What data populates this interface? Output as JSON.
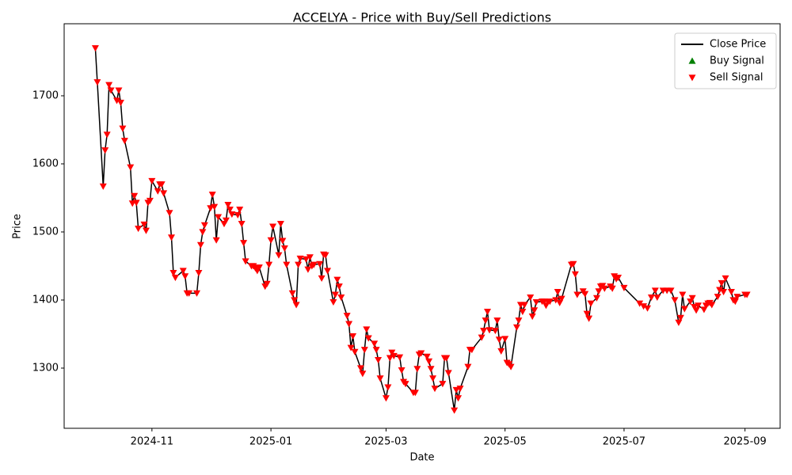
{
  "chart_data": {
    "type": "line",
    "title": "ACCELYA - Price with Buy/Sell Predictions",
    "x_label": "Date",
    "y_label": "Price",
    "xlim": [
      19983,
      20350
    ],
    "ylim": [
      1211.6,
      1805.8
    ],
    "xticks": [
      {
        "value": 20028,
        "label": "2024-11"
      },
      {
        "value": 20089,
        "label": "2025-01"
      },
      {
        "value": 20148,
        "label": "2025-03"
      },
      {
        "value": 20209,
        "label": "2025-05"
      },
      {
        "value": 20270,
        "label": "2025-07"
      },
      {
        "value": 20332,
        "label": "2025-09"
      }
    ],
    "yticks": [
      1300,
      1400,
      1500,
      1600,
      1700
    ],
    "grid": false,
    "legend": "upper right",
    "x": [
      19999,
      20000,
      20003,
      20004,
      20005,
      20006,
      20007,
      20010,
      20011,
      20012,
      20013,
      20014,
      20017,
      20018,
      20019,
      20020,
      20021,
      20024,
      20025,
      20026,
      20027,
      20028,
      20031,
      20032,
      20033,
      20034,
      20037,
      20038,
      20039,
      20040,
      20044,
      20045,
      20046,
      20047,
      20051,
      20052,
      20053,
      20054,
      20055,
      20058,
      20059,
      20060,
      20061,
      20062,
      20065,
      20066,
      20067,
      20068,
      20069,
      20072,
      20073,
      20074,
      20075,
      20076,
      20079,
      20080,
      20081,
      20082,
      20083,
      20086,
      20087,
      20088,
      20089,
      20090,
      20093,
      20094,
      20095,
      20096,
      20097,
      20100,
      20101,
      20102,
      20103,
      20104,
      20107,
      20108,
      20109,
      20110,
      20111,
      20114,
      20115,
      20116,
      20117,
      20118,
      20121,
      20122,
      20123,
      20124,
      20125,
      20128,
      20129,
      20130,
      20131,
      20132,
      20135,
      20136,
      20137,
      20138,
      20139,
      20142,
      20143,
      20144,
      20145,
      20148,
      20149,
      20150,
      20151,
      20152,
      20155,
      20156,
      20157,
      20158,
      20162,
      20163,
      20164,
      20165,
      20166,
      20169,
      20170,
      20171,
      20172,
      20173,
      20177,
      20178,
      20179,
      20180,
      20183,
      20184,
      20185,
      20186,
      20190,
      20191,
      20192,
      20197,
      20198,
      20199,
      20200,
      20201,
      20204,
      20205,
      20206,
      20207,
      20209,
      20210,
      20211,
      20212,
      20215,
      20216,
      20217,
      20218,
      20219,
      20222,
      20223,
      20224,
      20225,
      20228,
      20229,
      20230,
      20231,
      20232,
      20235,
      20236,
      20237,
      20238,
      20243,
      20244,
      20245,
      20246,
      20249,
      20250,
      20251,
      20252,
      20253,
      20256,
      20257,
      20258,
      20259,
      20260,
      20263,
      20264,
      20265,
      20266,
      20267,
      20270,
      20278,
      20280,
      20282,
      20284,
      20286,
      20287,
      20290,
      20292,
      20294,
      20296,
      20298,
      20299,
      20300,
      20301,
      20304,
      20305,
      20306,
      20307,
      20308,
      20311,
      20312,
      20313,
      20314,
      20315,
      20318,
      20319,
      20320,
      20321,
      20322,
      20325,
      20326,
      20327,
      20328,
      20332,
      20333
    ],
    "series": [
      {
        "name": "Close Price",
        "color": "#000000",
        "style": "line",
        "values": [
          1770,
          1720,
          1567,
          1620,
          1643,
          1716,
          1708,
          1693,
          1708,
          1690,
          1652,
          1634,
          1595,
          1542,
          1553,
          1543,
          1505,
          1511,
          1502,
          1543,
          1546,
          1575,
          1560,
          1570,
          1570,
          1557,
          1528,
          1492,
          1440,
          1433,
          1443,
          1435,
          1410,
          1410,
          1410,
          1440,
          1481,
          1500,
          1510,
          1535,
          1555,
          1537,
          1488,
          1522,
          1512,
          1517,
          1540,
          1533,
          1526,
          1525,
          1533,
          1512,
          1484,
          1457,
          1450,
          1450,
          1447,
          1443,
          1448,
          1420,
          1424,
          1452,
          1488,
          1508,
          1466,
          1512,
          1487,
          1476,
          1452,
          1410,
          1400,
          1393,
          1452,
          1461,
          1460,
          1445,
          1463,
          1450,
          1452,
          1453,
          1432,
          1467,
          1466,
          1443,
          1397,
          1408,
          1430,
          1420,
          1404,
          1377,
          1365,
          1330,
          1347,
          1324,
          1300,
          1292,
          1327,
          1357,
          1344,
          1336,
          1327,
          1312,
          1285,
          1256,
          1272,
          1315,
          1323,
          1318,
          1316,
          1297,
          1280,
          1277,
          1264,
          1264,
          1299,
          1320,
          1322,
          1317,
          1310,
          1299,
          1285,
          1270,
          1277,
          1315,
          1315,
          1293,
          1238,
          1268,
          1256,
          1270,
          1302,
          1327,
          1327,
          1345,
          1355,
          1370,
          1383,
          1356,
          1355,
          1370,
          1342,
          1325,
          1343,
          1308,
          1306,
          1302,
          1360,
          1370,
          1393,
          1383,
          1393,
          1404,
          1376,
          1385,
          1397,
          1398,
          1398,
          1392,
          1397,
          1398,
          1400,
          1412,
          1396,
          1402,
          1452,
          1453,
          1438,
          1408,
          1413,
          1409,
          1380,
          1373,
          1395,
          1403,
          1413,
          1420,
          1421,
          1417,
          1420,
          1417,
          1435,
          1431,
          1433,
          1418,
          1395,
          1391,
          1388,
          1404,
          1414,
          1404,
          1414,
          1414,
          1414,
          1400,
          1367,
          1374,
          1408,
          1387,
          1398,
          1403,
          1390,
          1385,
          1392,
          1386,
          1392,
          1395,
          1396,
          1393,
          1405,
          1415,
          1425,
          1412,
          1432,
          1412,
          1400,
          1398,
          1405,
          1408,
          1408
        ]
      },
      {
        "name": "Buy Signal",
        "color": "#008000",
        "style": "marker",
        "marker": "triangle-up"
      },
      {
        "name": "Sell Signal",
        "color": "#ff0000",
        "style": "marker",
        "marker": "triangle-down",
        "values": [
          1770,
          1720,
          1567,
          1620,
          1643,
          1716,
          1708,
          1693,
          1708,
          1690,
          1652,
          1634,
          1595,
          1542,
          1553,
          1543,
          1505,
          1511,
          1502,
          1543,
          1546,
          1575,
          1560,
          1570,
          1570,
          1557,
          1528,
          1492,
          1440,
          1433,
          1443,
          1435,
          1410,
          1410,
          1410,
          1440,
          1481,
          1500,
          1510,
          1535,
          1555,
          1537,
          1488,
          1522,
          1512,
          1517,
          1540,
          1533,
          1526,
          1525,
          1533,
          1512,
          1484,
          1457,
          1450,
          1450,
          1447,
          1443,
          1448,
          1420,
          1424,
          1452,
          1488,
          1508,
          1466,
          1512,
          1487,
          1476,
          1452,
          1410,
          1400,
          1393,
          1452,
          1461,
          1460,
          1445,
          1463,
          1450,
          1452,
          1453,
          1432,
          1467,
          1466,
          1443,
          1397,
          1408,
          1430,
          1420,
          1404,
          1377,
          1365,
          1330,
          1347,
          1324,
          1300,
          1292,
          1327,
          1357,
          1344,
          1336,
          1327,
          1312,
          1285,
          1256,
          1272,
          1315,
          1323,
          1318,
          1316,
          1297,
          1280,
          1277,
          1264,
          1264,
          1299,
          1320,
          1322,
          1317,
          1310,
          1299,
          1285,
          1270,
          1277,
          1315,
          1315,
          1293,
          1238,
          1268,
          1256,
          1270,
          1302,
          1327,
          1327,
          1345,
          1355,
          1370,
          1383,
          1356,
          1355,
          1370,
          1342,
          1325,
          1343,
          1308,
          1306,
          1302,
          1360,
          1370,
          1393,
          1383,
          1393,
          1404,
          1376,
          1385,
          1397,
          1398,
          1398,
          1392,
          1397,
          1398,
          1400,
          1412,
          1396,
          1402,
          1452,
          1453,
          1438,
          1408,
          1413,
          1409,
          1380,
          1373,
          1395,
          1403,
          1413,
          1420,
          1421,
          1417,
          1420,
          1417,
          1435,
          1431,
          1433,
          1418,
          1395,
          1391,
          1388,
          1404,
          1414,
          1404,
          1414,
          1414,
          1414,
          1400,
          1367,
          1374,
          1408,
          1387,
          1398,
          1403,
          1390,
          1385,
          1392,
          1386,
          1392,
          1395,
          1396,
          1393,
          1405,
          1415,
          1425,
          1412,
          1432,
          1412,
          1400,
          1398,
          1405,
          1408,
          1408
        ]
      }
    ]
  }
}
